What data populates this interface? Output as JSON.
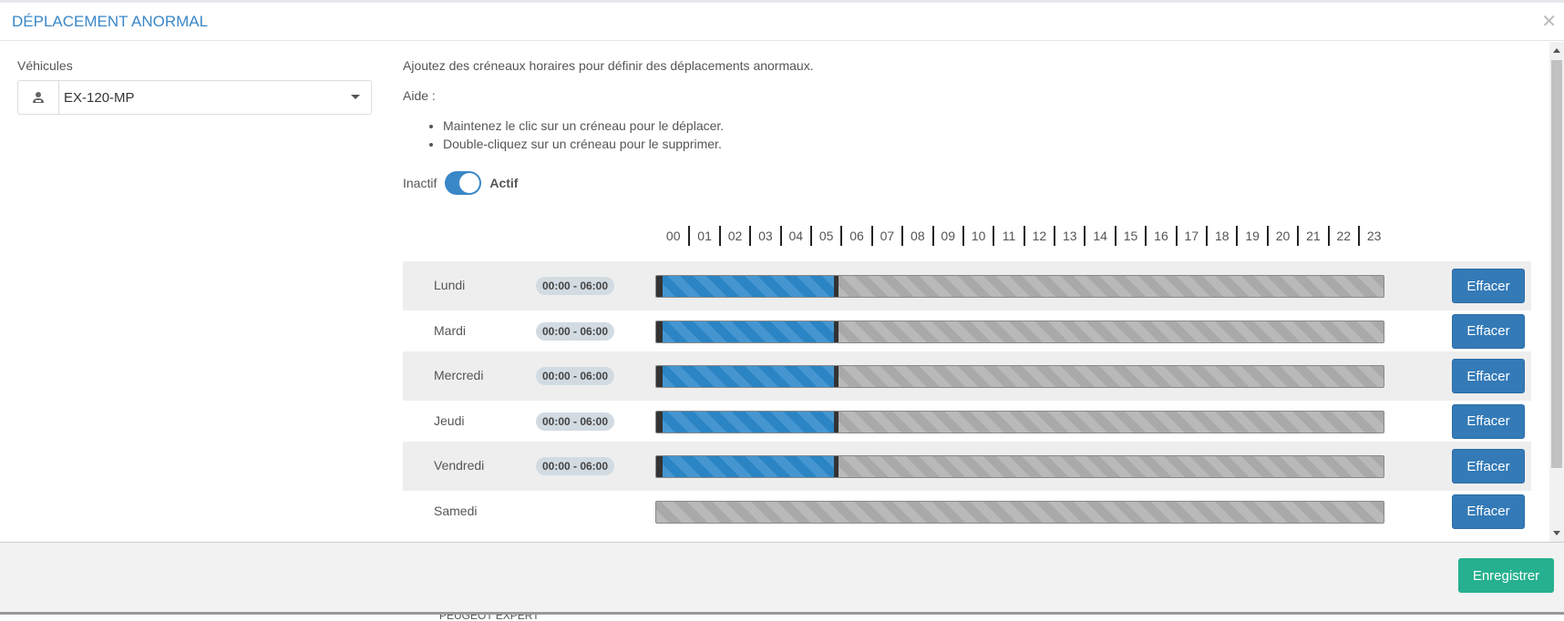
{
  "modal": {
    "title": "DÉPLACEMENT ANORMAL",
    "close_icon": "close-icon"
  },
  "vehicles": {
    "label": "Véhicules",
    "selected": "EX-120-MP",
    "icon": "driver-icon"
  },
  "help": {
    "intro": "Ajoutez des créneaux horaires pour définir des déplacements anormaux.",
    "title": "Aide :",
    "bullets": [
      "Maintenez le clic sur un créneau pour le déplacer.",
      "Double-cliquez sur un créneau pour le supprimer."
    ]
  },
  "toggle": {
    "off_label": "Inactif",
    "on_label": "Actif",
    "active": true
  },
  "hours": [
    "00",
    "01",
    "02",
    "03",
    "04",
    "05",
    "06",
    "07",
    "08",
    "09",
    "10",
    "11",
    "12",
    "13",
    "14",
    "15",
    "16",
    "17",
    "18",
    "19",
    "20",
    "21",
    "22",
    "23"
  ],
  "days": [
    {
      "name": "Lundi",
      "range": "00:00 - 06:00",
      "start": 0,
      "end": 6
    },
    {
      "name": "Mardi",
      "range": "00:00 - 06:00",
      "start": 0,
      "end": 6
    },
    {
      "name": "Mercredi",
      "range": "00:00 - 06:00",
      "start": 0,
      "end": 6
    },
    {
      "name": "Jeudi",
      "range": "00:00 - 06:00",
      "start": 0,
      "end": 6
    },
    {
      "name": "Vendredi",
      "range": "00:00 - 06:00",
      "start": 0,
      "end": 6
    },
    {
      "name": "Samedi",
      "range": null
    }
  ],
  "clear_label": "Effacer",
  "save_label": "Enregistrer",
  "background_text": "PEUGEOT EXPERT",
  "colors": {
    "accent": "#3a87c8",
    "button": "#337ab7",
    "save": "#26b08f",
    "slot": "#2b84c3"
  }
}
